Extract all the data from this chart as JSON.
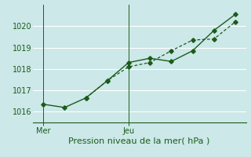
{
  "xlabel": "Pression niveau de la mer( hPa )",
  "background_color": "#cce8e8",
  "grid_color": "#ffffff",
  "line_color": "#1a5c1a",
  "ylim": [
    1015.5,
    1021.0
  ],
  "yticks": [
    1016,
    1017,
    1018,
    1019,
    1020
  ],
  "line1_x": [
    0,
    1,
    2,
    3,
    4,
    5,
    6,
    7,
    8,
    9
  ],
  "line1_y": [
    1016.35,
    1016.2,
    1016.65,
    1017.45,
    1018.3,
    1018.5,
    1018.35,
    1018.85,
    1019.8,
    1020.55
  ],
  "line2_x": [
    2,
    3,
    4,
    5,
    6,
    7,
    8,
    9
  ],
  "line2_y": [
    1016.65,
    1017.45,
    1018.1,
    1018.3,
    1018.85,
    1019.35,
    1019.4,
    1020.2
  ],
  "xtick_positions": [
    0,
    4
  ],
  "xtick_labels": [
    "Mer",
    "Jeu"
  ],
  "vline_positions": [
    0,
    4
  ],
  "xlim": [
    -0.5,
    9.5
  ],
  "n_xgrid": 10,
  "xlabel_fontsize": 8,
  "ytick_fontsize": 7,
  "xtick_fontsize": 7
}
